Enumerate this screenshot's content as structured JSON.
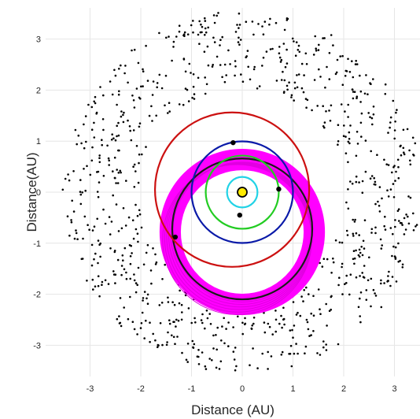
{
  "chart_data": {
    "type": "scatter",
    "title": "",
    "xlabel": "Distance (AU)",
    "ylabel": "Distance(AU)",
    "xlim": [
      -3.6,
      3.5
    ],
    "ylim": [
      -3.55,
      3.6
    ],
    "grid": true,
    "xticks": [
      -3,
      -2,
      -1,
      0,
      1,
      2,
      3
    ],
    "yticks": [
      -3,
      -2,
      -1,
      0,
      1,
      2,
      3
    ],
    "sun": {
      "x": 0,
      "y": 0,
      "fill": "#FFEB00"
    },
    "orbits": [
      {
        "center": [
          0,
          0
        ],
        "radius": 0.3,
        "color": "#22D3E6"
      },
      {
        "center": [
          0,
          0
        ],
        "radius": 0.72,
        "color": "#22CC22"
      },
      {
        "center": [
          0,
          0
        ],
        "radius": 1.0,
        "color": "#0A1AA8"
      },
      {
        "center": [
          -0.2,
          0.05
        ],
        "radius": 1.52,
        "color": "#CC1111"
      }
    ],
    "comet_band": {
      "center_x": 0,
      "center_y": -0.78,
      "rx": 1.42,
      "ry": 1.42,
      "thickness": 0.42,
      "color": "#FF00FF"
    },
    "comet_orbit": {
      "center_x": 0,
      "center_y": -0.72,
      "rx": 1.38,
      "ry": 1.38,
      "color": "#1A1A1A"
    },
    "bodies": [
      {
        "x": -0.05,
        "y": -0.45
      },
      {
        "x": 0.72,
        "y": 0.06
      },
      {
        "x": -0.18,
        "y": 0.97
      },
      {
        "x": -1.32,
        "y": -0.88
      }
    ],
    "asteroid_belt": {
      "inner_radius": 2.05,
      "outer_radius": 3.55,
      "count": 900,
      "color": "#000000"
    }
  }
}
